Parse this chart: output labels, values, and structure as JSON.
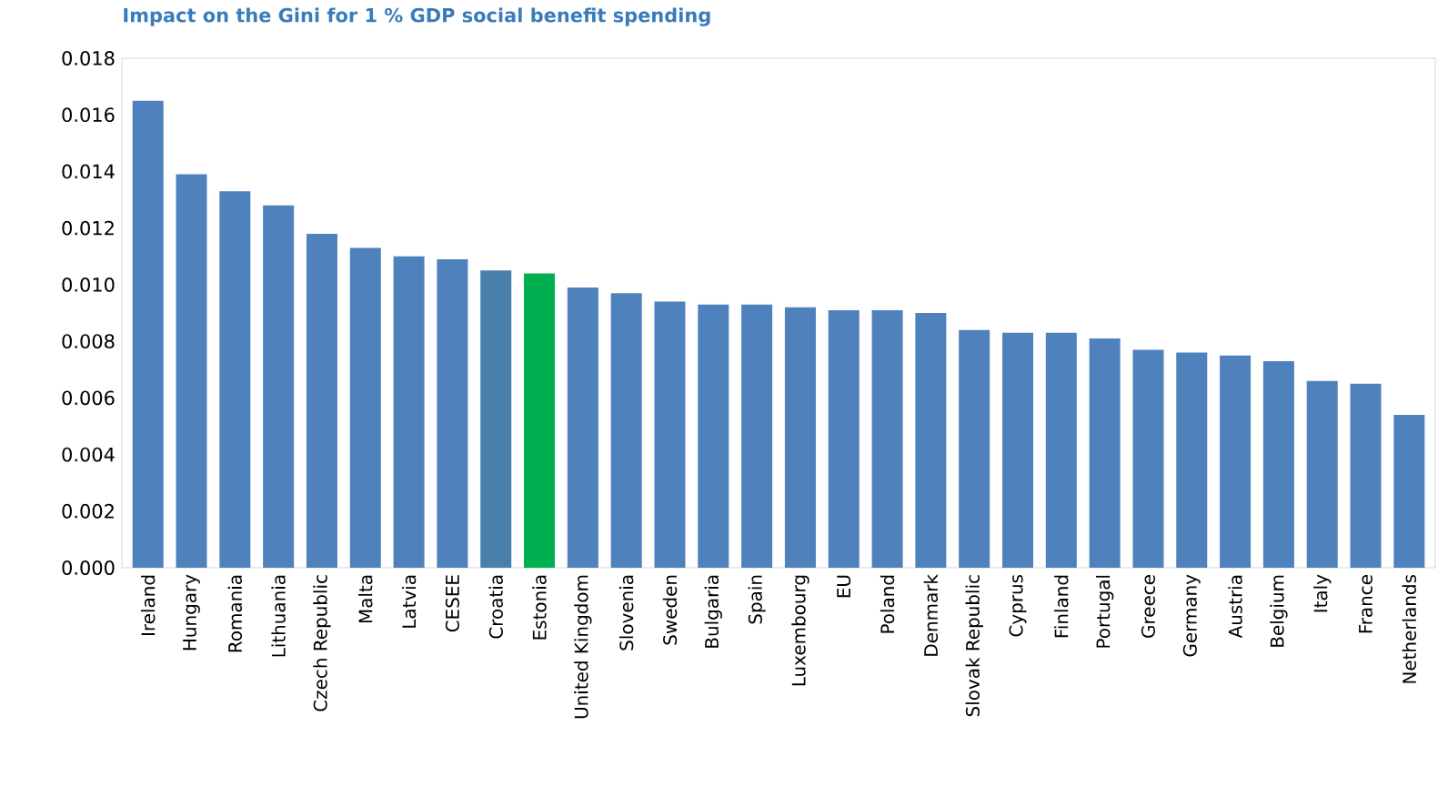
{
  "chart_data": {
    "type": "bar",
    "title": "Impact on the Gini for 1 % GDP social benefit spending",
    "categories": [
      "Ireland",
      "Hungary",
      "Romania",
      "Lithuania",
      "Czech Republic",
      "Malta",
      "Latvia",
      "CESEE",
      "Croatia",
      "Estonia",
      "United Kingdom",
      "Slovenia",
      "Sweden",
      "Bulgaria",
      "Spain",
      "Luxembourg",
      "EU",
      "Poland",
      "Denmark",
      "Slovak Republic",
      "Cyprus",
      "Finland",
      "Portugal",
      "Greece",
      "Germany",
      "Austria",
      "Belgium",
      "Italy",
      "France",
      "Netherlands"
    ],
    "values": [
      0.0165,
      0.0139,
      0.0133,
      0.0128,
      0.0118,
      0.0113,
      0.011,
      0.0109,
      0.0105,
      0.0104,
      0.0099,
      0.0097,
      0.0094,
      0.0093,
      0.0093,
      0.0092,
      0.0091,
      0.0091,
      0.009,
      0.0084,
      0.0083,
      0.0083,
      0.0081,
      0.0077,
      0.0076,
      0.0075,
      0.0073,
      0.0066,
      0.0065,
      0.0054
    ],
    "colors": [
      "#4f81bd",
      "#4f81bd",
      "#4f81bd",
      "#4f81bd",
      "#4f81bd",
      "#4f81bd",
      "#4f81bd",
      "#4f81bd",
      "#4a7fab",
      "#00b050",
      "#4f81bd",
      "#4f81bd",
      "#4f81bd",
      "#4f81bd",
      "#4f81bd",
      "#4f81bd",
      "#4f81bd",
      "#4f81bd",
      "#4f81bd",
      "#4f81bd",
      "#4f81bd",
      "#4f81bd",
      "#4f81bd",
      "#4f81bd",
      "#4f81bd",
      "#4f81bd",
      "#4f81bd",
      "#4f81bd",
      "#4f81bd",
      "#4f81bd"
    ],
    "ylim": [
      0,
      0.018
    ],
    "yticks": [
      {
        "value": 0,
        "label": "0.000"
      },
      0.002,
      0.004,
      0.006,
      0.008,
      {
        "value": 0.01,
        "label": "0.010"
      },
      0.012,
      0.014,
      0.016,
      0.018
    ],
    "grid": false
  }
}
